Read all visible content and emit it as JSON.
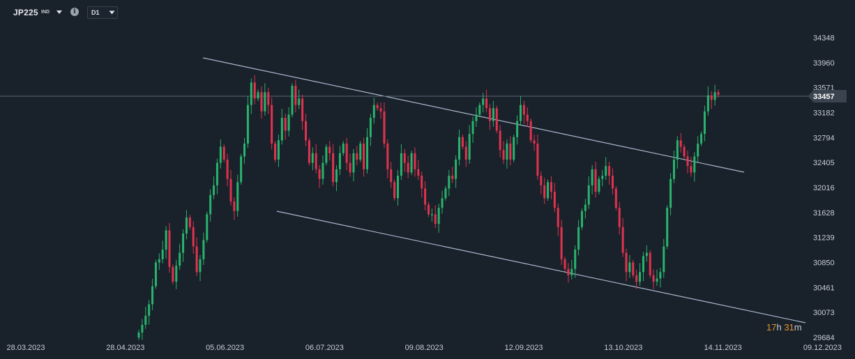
{
  "header": {
    "symbol": "JP225",
    "symbol_type": "IND",
    "timeframe": "D1",
    "info_glyph": "i"
  },
  "current_price_label": "33457",
  "countdown": {
    "hours": "17",
    "h_unit": "h",
    "minutes": "31",
    "m_unit": "m"
  },
  "colors": {
    "background": "#19212a",
    "bull": "#29b36d",
    "bear": "#e0334e",
    "trendline": "#a9b9cf",
    "countdown": "#e4952e",
    "price_tag": "#3a4350"
  },
  "icons": {
    "symbol_menu": "chevron-down-icon",
    "info": "info-icon",
    "timeframe_menu": "chevron-down-icon"
  },
  "chart_data": {
    "type": "candlestick",
    "title": "",
    "xlabel": "",
    "ylabel": "",
    "ylim": [
      29684,
      34700
    ],
    "y_ticks": [
      "34348",
      "33960",
      "33571",
      "33182",
      "32794",
      "32405",
      "32016",
      "31628",
      "31239",
      "30850",
      "30461",
      "30073",
      "29684"
    ],
    "x_ticks": [
      "28.03.2023",
      "28.04.2023",
      "05.06.2023",
      "06.07.2023",
      "09.08.2023",
      "12.09.2023",
      "13.10.2023",
      "14.11.2023",
      "09.12.2023"
    ],
    "grid": false,
    "current_price": 33457,
    "close_approx": [
      29760,
      29880,
      30020,
      30200,
      30480,
      30850,
      30900,
      31050,
      31350,
      30780,
      30550,
      30800,
      31000,
      31300,
      31550,
      31400,
      31100,
      30700,
      30900,
      31200,
      31600,
      31900,
      32050,
      32400,
      32650,
      32450,
      32150,
      31800,
      31650,
      32100,
      32500,
      32700,
      33300,
      33650,
      33400,
      33500,
      33200,
      33500,
      33300,
      32700,
      32450,
      32750,
      33100,
      32900,
      33150,
      33600,
      33300,
      33400,
      33050,
      32750,
      32400,
      32550,
      32300,
      32150,
      32400,
      32650,
      32550,
      32100,
      32300,
      32550,
      32700,
      32400,
      32250,
      32550,
      32450,
      32700,
      32300,
      32800,
      33100,
      33300,
      33250,
      33200,
      32700,
      32300,
      32100,
      31850,
      32200,
      32550,
      32400,
      32250,
      32550,
      32300,
      32200,
      32000,
      31750,
      31600,
      31600,
      31450,
      31700,
      31850,
      32000,
      32200,
      32150,
      32450,
      32800,
      32650,
      32450,
      32850,
      33050,
      33150,
      33300,
      33400,
      33250,
      33050,
      33250,
      32900,
      32600,
      32450,
      32700,
      32450,
      32800,
      33050,
      33300,
      33150,
      33050,
      32750,
      32700,
      32200,
      32050,
      31850,
      32100,
      31950,
      31700,
      31400,
      30900,
      30750,
      30650,
      30750,
      31050,
      31400,
      31650,
      31750,
      32050,
      32300,
      31950,
      32150,
      32200,
      32350,
      32200,
      32000,
      31700,
      31400,
      31000,
      30700,
      30850,
      30650,
      30550,
      30700,
      30950,
      31000,
      30650,
      30550,
      30600,
      30700,
      31100,
      31700,
      32150,
      32450,
      32750,
      32650,
      32500,
      32350,
      32250,
      32500,
      32700,
      32850,
      33200,
      33450,
      33380,
      33500,
      33457
    ]
  }
}
